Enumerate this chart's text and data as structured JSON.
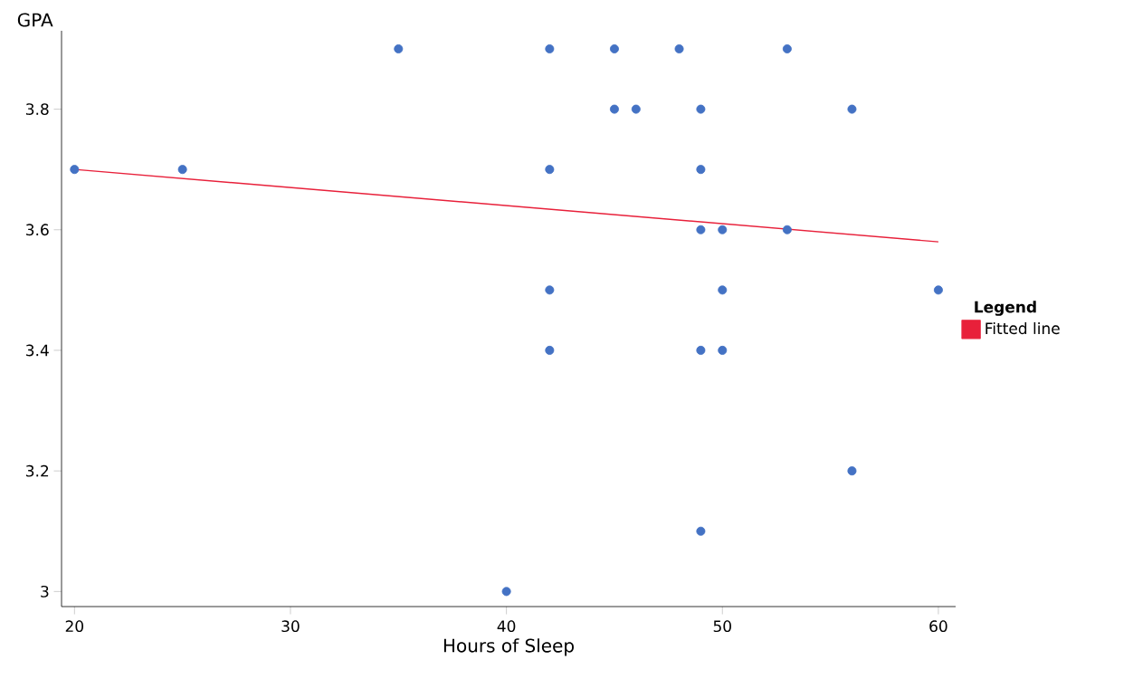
{
  "chart_data": {
    "type": "scatter",
    "xlabel": "Hours of Sleep",
    "ylabel": "GPA",
    "legend_title": "Legend",
    "xlim": [
      19.4,
      60.8
    ],
    "ylim": [
      2.975,
      3.93
    ],
    "xticks": [
      20,
      30,
      40,
      50,
      60
    ],
    "yticks": [
      3,
      3.2,
      3.4,
      3.6,
      3.8
    ],
    "grid": false,
    "legend": "right",
    "series": [
      {
        "color": "#4472c4",
        "marker": "circle",
        "x": [
          20,
          25,
          35,
          42,
          45,
          48,
          53,
          45,
          46,
          49,
          56,
          42,
          49,
          49,
          50,
          53,
          42,
          50,
          60,
          42,
          49,
          50,
          56,
          49,
          40
        ],
        "values": [
          3.7,
          3.7,
          3.9,
          3.9,
          3.9,
          3.9,
          3.9,
          3.8,
          3.8,
          3.8,
          3.8,
          3.7,
          3.7,
          3.6,
          3.6,
          3.6,
          3.5,
          3.5,
          3.5,
          3.4,
          3.4,
          3.4,
          3.2,
          3.1,
          3.0
        ]
      },
      {
        "type": "line",
        "name": "Fitted line",
        "color": "#e8203a",
        "marker": "none",
        "x": [
          20,
          60
        ],
        "values": [
          3.7,
          3.58
        ]
      }
    ]
  }
}
